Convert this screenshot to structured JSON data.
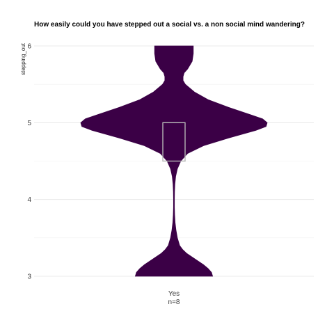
{
  "chart_data": {
    "type": "violin",
    "title": "How easily could you have stepped out a social vs. a non social mind wandering?",
    "xlabel": "",
    "ylabel": "stepping_out",
    "ylim": [
      3,
      6
    ],
    "yticks": [
      3,
      4,
      5,
      6
    ],
    "grid": true,
    "legend": "none",
    "categories": [
      {
        "label": "Yes",
        "count_label": "n=8"
      }
    ],
    "series": [
      {
        "category": "Yes",
        "fill_color": "#3b0046",
        "box": {
          "q1": 4.5,
          "median": 5,
          "q3": 5
        },
        "density": [
          [
            3.0,
            0.34
          ],
          [
            3.05,
            0.33
          ],
          [
            3.1,
            0.3
          ],
          [
            3.15,
            0.26
          ],
          [
            3.2,
            0.21
          ],
          [
            3.25,
            0.16
          ],
          [
            3.3,
            0.11
          ],
          [
            3.35,
            0.075
          ],
          [
            3.4,
            0.05
          ],
          [
            3.5,
            0.03
          ],
          [
            3.6,
            0.018
          ],
          [
            3.7,
            0.01
          ],
          [
            3.8,
            0.006
          ],
          [
            3.9,
            0.004
          ],
          [
            4.0,
            0.004
          ],
          [
            4.1,
            0.005
          ],
          [
            4.2,
            0.008
          ],
          [
            4.3,
            0.015
          ],
          [
            4.4,
            0.03
          ],
          [
            4.5,
            0.06
          ],
          [
            4.6,
            0.12
          ],
          [
            4.7,
            0.26
          ],
          [
            4.8,
            0.48
          ],
          [
            4.9,
            0.72
          ],
          [
            4.95,
            0.81
          ],
          [
            5.0,
            0.82
          ],
          [
            5.05,
            0.78
          ],
          [
            5.1,
            0.68
          ],
          [
            5.2,
            0.48
          ],
          [
            5.3,
            0.3
          ],
          [
            5.4,
            0.18
          ],
          [
            5.5,
            0.1
          ],
          [
            5.55,
            0.08
          ],
          [
            5.6,
            0.08
          ],
          [
            5.65,
            0.09
          ],
          [
            5.7,
            0.12
          ],
          [
            5.8,
            0.16
          ],
          [
            5.9,
            0.17
          ],
          [
            6.0,
            0.17
          ]
        ]
      }
    ]
  }
}
